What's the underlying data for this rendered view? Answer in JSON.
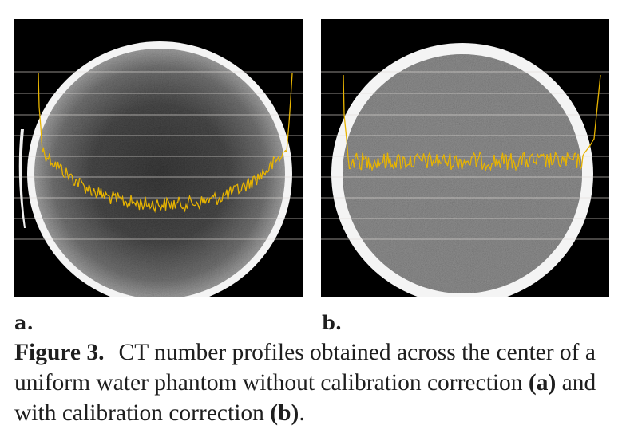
{
  "panels": [
    {
      "id": "a",
      "label": "a.",
      "calibrated": false
    },
    {
      "id": "b",
      "label": "b.",
      "calibrated": true
    }
  ],
  "caption": {
    "figure_label": "Figure 3.",
    "text_1": "CT number profiles obtained across the center of a uniform water phantom without calibration correction ",
    "ref_a": "(a)",
    "text_2": " and with calibration correction ",
    "ref_b": "(b)",
    "text_3": "."
  },
  "colors": {
    "profile_line": "#e8b400",
    "grid_line": "#e0dcd8",
    "ring": "#f4f4f4",
    "background": "#000000"
  }
}
